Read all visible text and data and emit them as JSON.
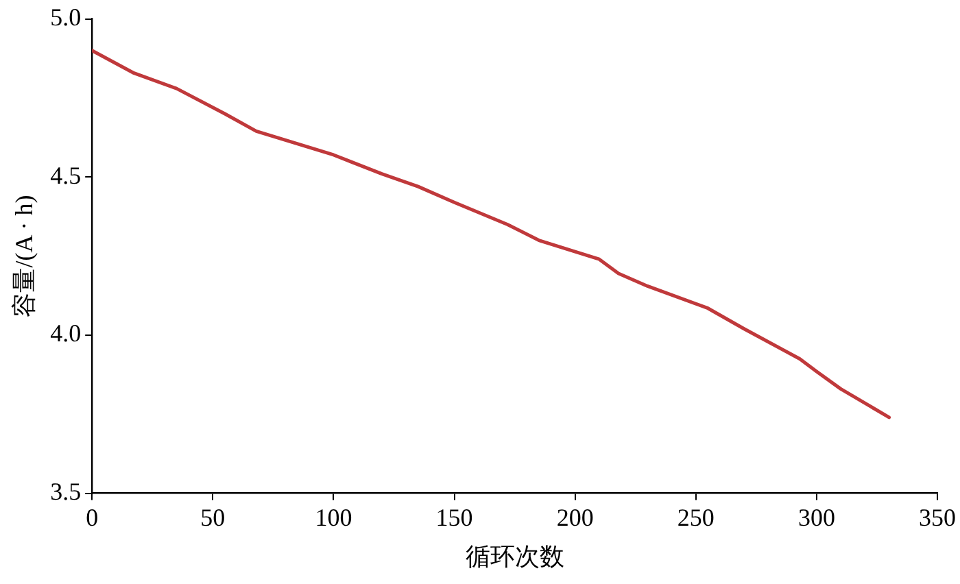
{
  "chart_data": {
    "type": "line",
    "xlabel": "循环次数",
    "ylabel": "容量/(A · h)",
    "series": [
      {
        "color": "#c0393b",
        "x": [
          0,
          17,
          35,
          55,
          68,
          100,
          120,
          135,
          150,
          172,
          185,
          210,
          218,
          230,
          255,
          270,
          293,
          300,
          310,
          330
        ],
        "values": [
          4.9,
          4.83,
          4.78,
          4.7,
          4.645,
          4.57,
          4.51,
          4.47,
          4.42,
          4.35,
          4.3,
          4.24,
          4.195,
          4.155,
          4.085,
          4.02,
          3.925,
          3.885,
          3.83,
          3.74
        ]
      }
    ],
    "xlim": [
      0,
      350
    ],
    "xticks": [
      0,
      50,
      100,
      150,
      200,
      250,
      300,
      350
    ],
    "ylim": [
      3.5,
      5.0
    ],
    "yticks": [
      3.5,
      {
        "value": 4,
        "label": "4.0"
      },
      4.5,
      {
        "value": 5,
        "label": "5.0"
      }
    ],
    "grid": false,
    "legend": false,
    "marker": "none",
    "line_style": "solid"
  }
}
